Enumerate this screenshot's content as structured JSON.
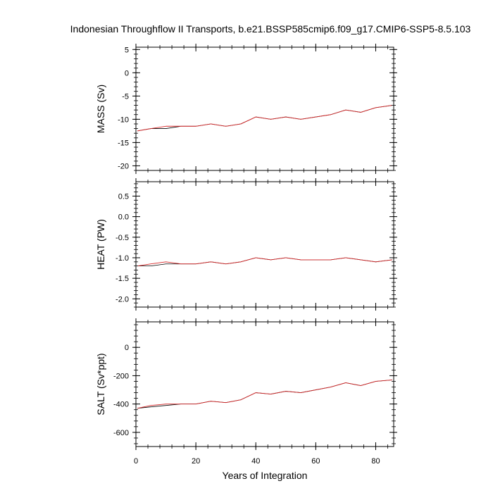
{
  "figure": {
    "title": "Indonesian Throughflow II Transports, b.e21.BSSP585cmip6.f09_g17.CMIP6-SSP5-8.5.103",
    "xlabel": "Years of Integration"
  },
  "chart_data": [
    {
      "type": "line",
      "ylabel": "MASS (Sv)",
      "xlim": [
        0,
        86
      ],
      "ylim": [
        -21,
        5.5
      ],
      "xticks": [
        0,
        20,
        40,
        60,
        80
      ],
      "xtick_labels": [
        "0",
        "20",
        "40",
        "60",
        "80"
      ],
      "yticks": [
        5,
        0,
        -5,
        -10,
        -15,
        -20
      ],
      "ytick_labels": [
        "5",
        "0",
        "-5",
        "-10",
        "-15",
        "-20"
      ],
      "series": [
        {
          "color": "#000000",
          "x": [
            0.5,
            5,
            10,
            15,
            20,
            25,
            30,
            35,
            40,
            45,
            50,
            55,
            60,
            65,
            70,
            75,
            80,
            85.5
          ],
          "y": [
            -12.5,
            -12,
            -12,
            -11.5,
            -11.5,
            -11,
            -11.5,
            -11,
            -9.5,
            -10,
            -9.5,
            -10,
            -9.5,
            -9,
            -8,
            -8.5,
            -7.5,
            -7
          ]
        },
        {
          "color": "#d62728",
          "x": [
            0.5,
            5,
            10,
            15,
            20,
            25,
            30,
            35,
            40,
            45,
            50,
            55,
            60,
            65,
            70,
            75,
            80,
            85.5
          ],
          "y": [
            -12.5,
            -12,
            -11.5,
            -11.5,
            -11.5,
            -11,
            -11.5,
            -11,
            -9.5,
            -10,
            -9.5,
            -10,
            -9.5,
            -9,
            -8,
            -8.5,
            -7.5,
            -7
          ]
        }
      ]
    },
    {
      "type": "line",
      "ylabel": "HEAT (PW)",
      "xlim": [
        0,
        86
      ],
      "ylim": [
        -2.2,
        0.85
      ],
      "xticks": [
        0,
        20,
        40,
        60,
        80
      ],
      "xtick_labels": [
        "0",
        "20",
        "40",
        "60",
        "80"
      ],
      "yticks": [
        0.5,
        0.0,
        -0.5,
        -1.0,
        -1.5,
        -2.0
      ],
      "ytick_labels": [
        "0.5",
        "0.0",
        "-0.5",
        "-1.0",
        "-1.5",
        "-2.0"
      ],
      "series": [
        {
          "color": "#000000",
          "x": [
            0.5,
            5,
            10,
            15,
            20,
            25,
            30,
            35,
            40,
            45,
            50,
            55,
            60,
            65,
            70,
            75,
            80,
            85.5
          ],
          "y": [
            -1.2,
            -1.2,
            -1.15,
            -1.15,
            -1.15,
            -1.1,
            -1.15,
            -1.1,
            -1.0,
            -1.05,
            -1.0,
            -1.05,
            -1.05,
            -1.05,
            -1.0,
            -1.05,
            -1.1,
            -1.05
          ]
        },
        {
          "color": "#d62728",
          "x": [
            0.5,
            5,
            10,
            15,
            20,
            25,
            30,
            35,
            40,
            45,
            50,
            55,
            60,
            65,
            70,
            75,
            80,
            85.5
          ],
          "y": [
            -1.2,
            -1.15,
            -1.1,
            -1.15,
            -1.15,
            -1.1,
            -1.15,
            -1.1,
            -1.0,
            -1.05,
            -1.0,
            -1.05,
            -1.05,
            -1.05,
            -1.0,
            -1.05,
            -1.1,
            -1.05
          ]
        }
      ]
    },
    {
      "type": "line",
      "ylabel": "SALT (Sv*ppt)",
      "xlim": [
        0,
        86
      ],
      "ylim": [
        -700,
        180
      ],
      "xticks": [
        0,
        20,
        40,
        60,
        80
      ],
      "xtick_labels": [
        "0",
        "20",
        "40",
        "60",
        "80"
      ],
      "yticks": [
        0,
        -200,
        -400,
        -600
      ],
      "ytick_labels": [
        "0",
        "-200",
        "-400",
        "-600"
      ],
      "series": [
        {
          "color": "#000000",
          "x": [
            0.5,
            5,
            10,
            15,
            20,
            25,
            30,
            35,
            40,
            45,
            50,
            55,
            60,
            65,
            70,
            75,
            80,
            85.5
          ],
          "y": [
            -430,
            -420,
            -410,
            -400,
            -400,
            -380,
            -390,
            -370,
            -320,
            -330,
            -310,
            -320,
            -300,
            -280,
            -250,
            -270,
            -240,
            -230
          ]
        },
        {
          "color": "#d62728",
          "x": [
            0.5,
            5,
            10,
            15,
            20,
            25,
            30,
            35,
            40,
            45,
            50,
            55,
            60,
            65,
            70,
            75,
            80,
            85.5
          ],
          "y": [
            -430,
            -410,
            -400,
            -400,
            -400,
            -380,
            -390,
            -370,
            -320,
            -330,
            -310,
            -320,
            -300,
            -280,
            -250,
            -270,
            -240,
            -230
          ]
        }
      ]
    }
  ]
}
